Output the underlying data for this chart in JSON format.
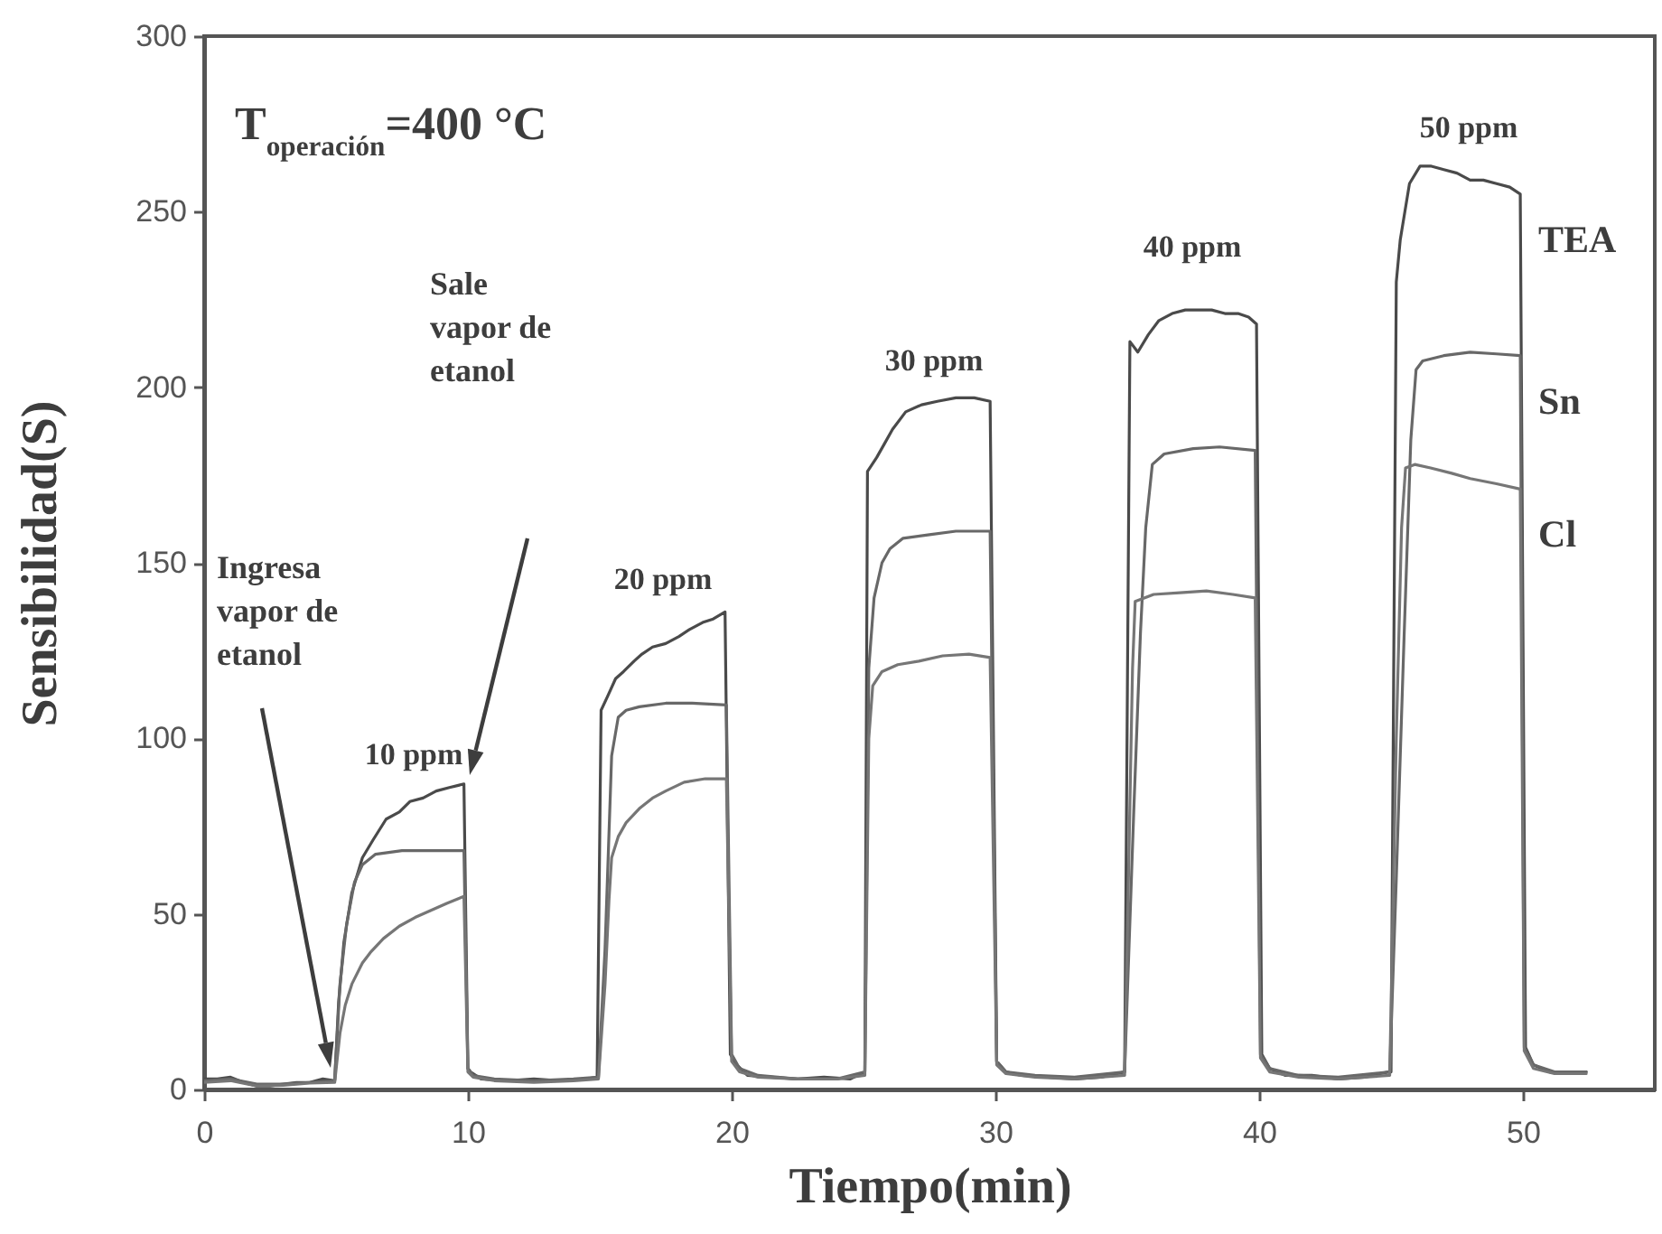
{
  "chart_data": {
    "type": "line",
    "xlabel": "Tiempo(min)",
    "ylabel": "Sensibilidad(S)",
    "xlim": [
      0,
      55
    ],
    "xticks": [
      0,
      10,
      20,
      30,
      40,
      50
    ],
    "ylim": [
      0,
      300
    ],
    "yticks": [
      0,
      50,
      100,
      150,
      200,
      250,
      300
    ],
    "series": [
      {
        "name": "TEA",
        "color": "#4a4a4a",
        "x": [
          0,
          0.5,
          1,
          1.5,
          2,
          2.5,
          3,
          3.5,
          4,
          4.5,
          4.95,
          5.1,
          5.3,
          5.6,
          6.0,
          6.4,
          6.9,
          7.4,
          7.8,
          8.3,
          8.8,
          9.3,
          9.85,
          10.0,
          10.1,
          10.5,
          11.5,
          12.5,
          13.5,
          14.5,
          14.9,
          15.05,
          15.3,
          15.6,
          15.9,
          16.3,
          16.6,
          17.0,
          17.5,
          18.0,
          18.4,
          18.9,
          19.3,
          19.75,
          19.95,
          20.2,
          20.6,
          21.5,
          22.5,
          23.5,
          24.5,
          25.05,
          25.15,
          25.5,
          25.8,
          26.1,
          26.6,
          27.2,
          27.8,
          28.5,
          29.2,
          29.8,
          30.05,
          30.4,
          31,
          32,
          33,
          34,
          34.9,
          35.1,
          35.4,
          35.8,
          36.2,
          36.7,
          37.2,
          37.7,
          38.2,
          38.7,
          39.2,
          39.6,
          39.9,
          40.1,
          40.4,
          41,
          42,
          43,
          44,
          44.9,
          45.0,
          45.2,
          45.35,
          45.7,
          46.1,
          46.5,
          47.0,
          47.5,
          48.0,
          48.5,
          49.0,
          49.5,
          49.9,
          50.1,
          50.4,
          51,
          51.8,
          52.4
        ],
        "values": [
          3,
          3,
          3.5,
          2,
          1,
          1,
          1.5,
          2,
          2,
          3,
          2.5,
          25,
          42,
          56,
          66,
          71,
          77,
          79,
          82,
          83,
          85,
          86,
          87,
          6,
          5,
          3,
          2.5,
          3,
          2.5,
          3,
          3.5,
          108,
          112,
          117,
          119,
          122,
          124,
          126,
          127,
          129,
          131,
          133,
          134,
          136,
          10,
          7,
          4,
          3.5,
          3,
          3.5,
          3,
          5,
          176,
          180,
          184,
          188,
          193,
          195,
          196,
          197,
          197,
          196,
          8,
          5,
          4,
          3.5,
          3,
          3.5,
          5,
          213,
          210,
          215,
          219,
          221,
          222,
          222,
          222,
          221,
          221,
          220,
          218,
          10,
          6,
          4,
          4,
          3,
          3.5,
          5,
          5,
          230,
          242,
          258,
          263,
          263,
          262,
          261,
          259,
          259,
          258,
          257,
          255,
          12,
          7,
          5,
          4.5,
          5
        ]
      },
      {
        "name": "Sn",
        "color": "#686868",
        "x": [
          0,
          1,
          2,
          3,
          4,
          4.95,
          5.15,
          5.4,
          5.7,
          6.0,
          6.5,
          7.5,
          8.5,
          9.85,
          10.0,
          10.2,
          11,
          12.5,
          14,
          14.95,
          15.2,
          15.45,
          15.7,
          16.0,
          16.5,
          17.5,
          18.5,
          19.8,
          20.0,
          20.3,
          21,
          22.5,
          24,
          25.05,
          25.2,
          25.4,
          25.7,
          26.0,
          26.5,
          27.5,
          28.5,
          29.8,
          30.05,
          30.4,
          31.5,
          33,
          34.9,
          35.25,
          35.5,
          35.7,
          35.95,
          36.4,
          37.5,
          38.5,
          39.85,
          40.05,
          40.4,
          41.5,
          43,
          44.95,
          45.2,
          45.5,
          45.75,
          45.95,
          46.2,
          47,
          48,
          49,
          49.9,
          50.05,
          50.4,
          51.2,
          52.4
        ],
        "values": [
          2.5,
          3,
          1.5,
          1.5,
          2,
          2.5,
          30,
          47,
          59,
          64,
          67,
          68,
          68,
          68,
          6,
          4,
          3,
          2.5,
          3,
          3.5,
          40,
          95,
          106,
          108,
          109,
          110,
          110,
          109.5,
          10,
          6,
          4,
          3,
          3,
          5,
          120,
          140,
          150,
          154,
          157,
          158,
          159,
          159,
          8,
          5,
          4,
          3.5,
          5,
          80,
          130,
          160,
          178,
          181,
          182.5,
          183,
          182,
          10,
          6,
          4,
          3.5,
          5,
          60,
          130,
          185,
          205,
          207.5,
          209,
          210,
          209.5,
          209,
          12,
          7,
          5,
          5
        ]
      },
      {
        "name": "Cl",
        "color": "#767676",
        "x": [
          0,
          1,
          2,
          3,
          4,
          4.95,
          5.15,
          5.35,
          5.6,
          6.0,
          6.3,
          6.8,
          7.4,
          8.0,
          8.6,
          9.2,
          9.85,
          10.0,
          10.2,
          11,
          12.5,
          14,
          14.95,
          15.2,
          15.35,
          15.45,
          15.7,
          16.0,
          16.5,
          17.0,
          17.5,
          18.2,
          19.0,
          19.8,
          20.0,
          20.3,
          21,
          22.5,
          24,
          25.05,
          25.2,
          25.35,
          25.7,
          26.3,
          27.1,
          28,
          29,
          29.8,
          30.05,
          30.4,
          31.5,
          33,
          34.9,
          35.2,
          35.3,
          36,
          37,
          38,
          39,
          39.85,
          40.05,
          40.4,
          41.5,
          43,
          44.95,
          45.2,
          45.4,
          45.55,
          45.9,
          46.5,
          47.3,
          48,
          49,
          49.9,
          50.05,
          50.4,
          51.2,
          52.4
        ],
        "values": [
          2,
          2.5,
          1,
          1.2,
          1.8,
          2,
          16,
          24,
          30,
          36,
          39,
          43,
          46.5,
          49,
          51,
          53,
          55,
          5,
          3.5,
          2.5,
          2,
          2.5,
          3,
          30,
          54,
          66,
          72,
          76,
          80,
          83,
          85,
          87.5,
          88.5,
          88.5,
          8,
          5,
          3.5,
          3,
          3,
          4,
          100,
          115,
          119,
          121,
          122,
          123.5,
          124,
          123,
          7,
          4.5,
          3.5,
          3,
          4,
          120,
          139,
          141,
          141.5,
          142,
          141,
          140,
          9,
          5,
          3.5,
          3,
          4,
          100,
          160,
          177,
          178,
          177,
          175.5,
          174,
          172.5,
          171,
          11,
          6,
          4.5,
          4.5
        ]
      }
    ],
    "annotations": [
      "T$_{operación}$=400 °C",
      "Ingresa vapor de etanol",
      "Sale vapor de etanol",
      "10 ppm",
      "20 ppm",
      "30 ppm",
      "40 ppm",
      "50 ppm"
    ]
  }
}
